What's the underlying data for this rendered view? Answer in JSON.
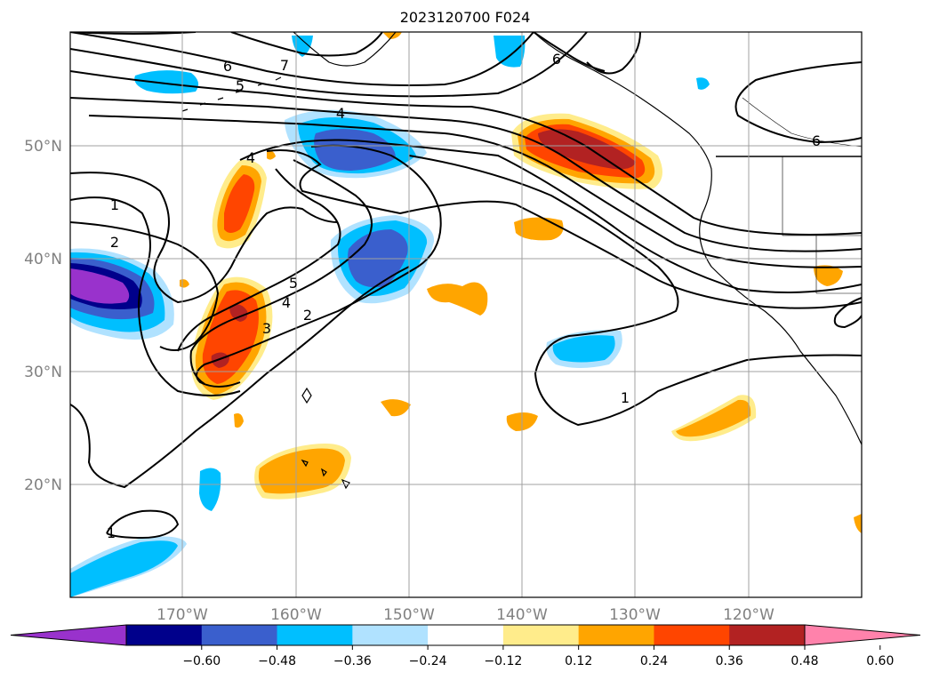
{
  "title": "2023120700 F024",
  "map": {
    "lon_range": [
      180,
      110
    ],
    "lat_range": [
      10,
      60
    ],
    "lon_ticks": [
      "170°W",
      "160°W",
      "150°W",
      "140°W",
      "130°W",
      "120°W"
    ],
    "lat_ticks": [
      "20°N",
      "30°N",
      "40°N",
      "50°N"
    ],
    "grid": true
  },
  "colorbar": {
    "orientation": "horizontal",
    "extend": "both",
    "tick_labels": [
      "−0.60",
      "−0.48",
      "−0.36",
      "−0.24",
      "−0.12",
      "0.12",
      "0.24",
      "0.36",
      "0.48",
      "0.60"
    ],
    "colors": [
      "#9932cc",
      "#00008b",
      "#3a5fcd",
      "#00bfff",
      "#b0e2ff",
      "#ffffff",
      "#ffec8b",
      "#ffa500",
      "#ff4500",
      "#b22222",
      "#ff82ab"
    ]
  },
  "contour_labels": [
    "6",
    "7",
    "5",
    "4",
    "6",
    "6",
    "4",
    "1",
    "2",
    "4",
    "5",
    "4",
    "3",
    "2",
    "1",
    "1"
  ]
}
